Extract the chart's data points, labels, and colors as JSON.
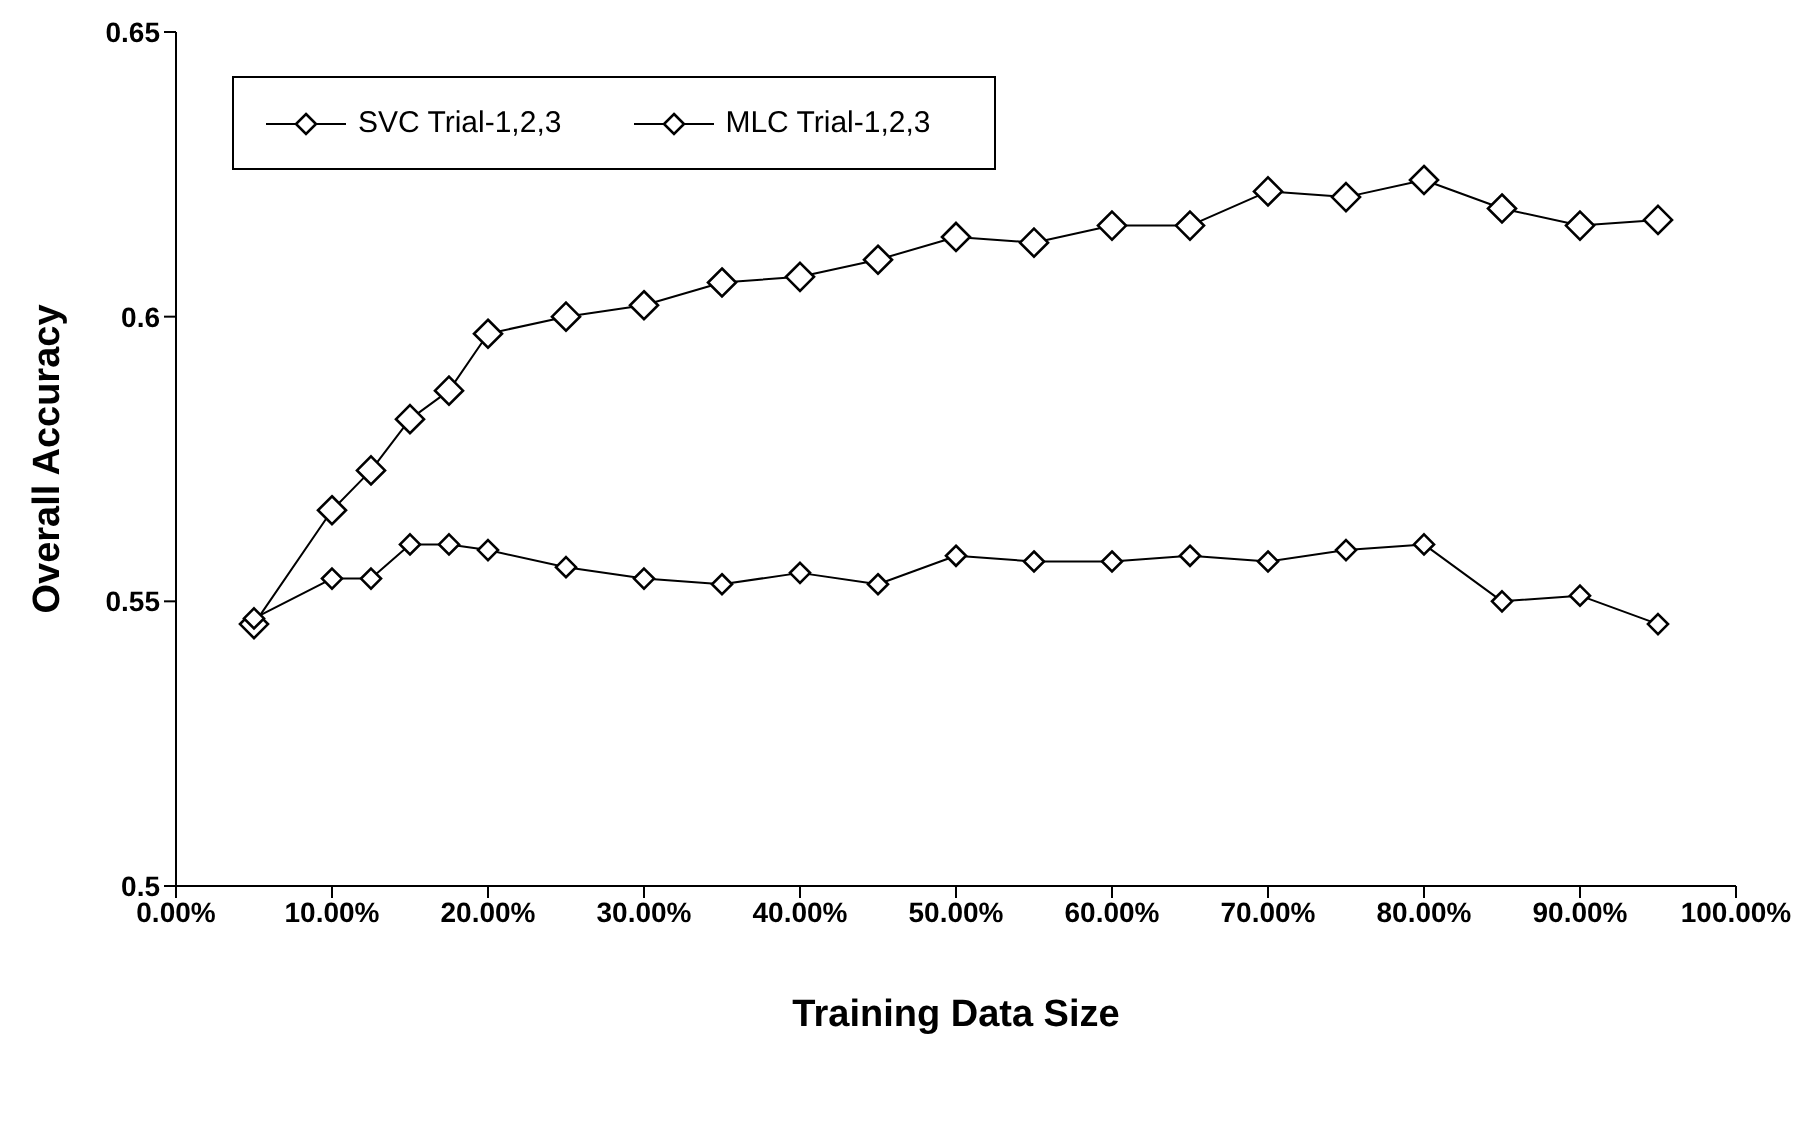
{
  "chart_data": {
    "type": "line",
    "xlabel": "Training Data Size",
    "ylabel": "Overall Accuracy",
    "x": [
      0.05,
      0.1,
      0.125,
      0.15,
      0.175,
      0.2,
      0.25,
      0.3,
      0.35,
      0.4,
      0.45,
      0.5,
      0.55,
      0.6,
      0.65,
      0.7,
      0.75,
      0.8,
      0.85,
      0.9,
      0.95
    ],
    "series": [
      {
        "name": "SVC Trial-1,2,3",
        "color": "#000000",
        "values": [
          0.546,
          0.566,
          0.573,
          0.582,
          0.587,
          0.597,
          0.6,
          0.602,
          0.606,
          0.607,
          0.61,
          0.614,
          0.613,
          0.616,
          0.616,
          0.622,
          0.621,
          0.624,
          0.619,
          0.616,
          0.617
        ]
      },
      {
        "name": "MLC Trial-1,2,3",
        "color": "#000000",
        "values": [
          0.547,
          0.554,
          0.554,
          0.56,
          0.56,
          0.559,
          0.556,
          0.554,
          0.553,
          0.555,
          0.553,
          0.558,
          0.557,
          0.557,
          0.558,
          0.557,
          0.559,
          0.56,
          0.55,
          0.551,
          0.546
        ]
      }
    ],
    "xlim": [
      0,
      1
    ],
    "xticks": [
      {
        "value": 0,
        "label": "0.00%"
      },
      {
        "value": 0.1,
        "label": "10.00%"
      },
      {
        "value": 0.2,
        "label": "20.00%"
      },
      {
        "value": 0.3,
        "label": "30.00%"
      },
      {
        "value": 0.4,
        "label": "40.00%"
      },
      {
        "value": 0.5,
        "label": "50.00%"
      },
      {
        "value": 0.6,
        "label": "60.00%"
      },
      {
        "value": 0.7,
        "label": "70.00%"
      },
      {
        "value": 0.8,
        "label": "80.00%"
      },
      {
        "value": 0.9,
        "label": "90.00%"
      },
      {
        "value": 1,
        "label": "100.00%"
      }
    ],
    "ylim": [
      0.5,
      0.65
    ],
    "yticks": [
      0.5,
      0.55,
      0.6,
      0.65
    ],
    "legend": "top left",
    "marker": "diamond",
    "line_style": "solid",
    "grid": false
  }
}
